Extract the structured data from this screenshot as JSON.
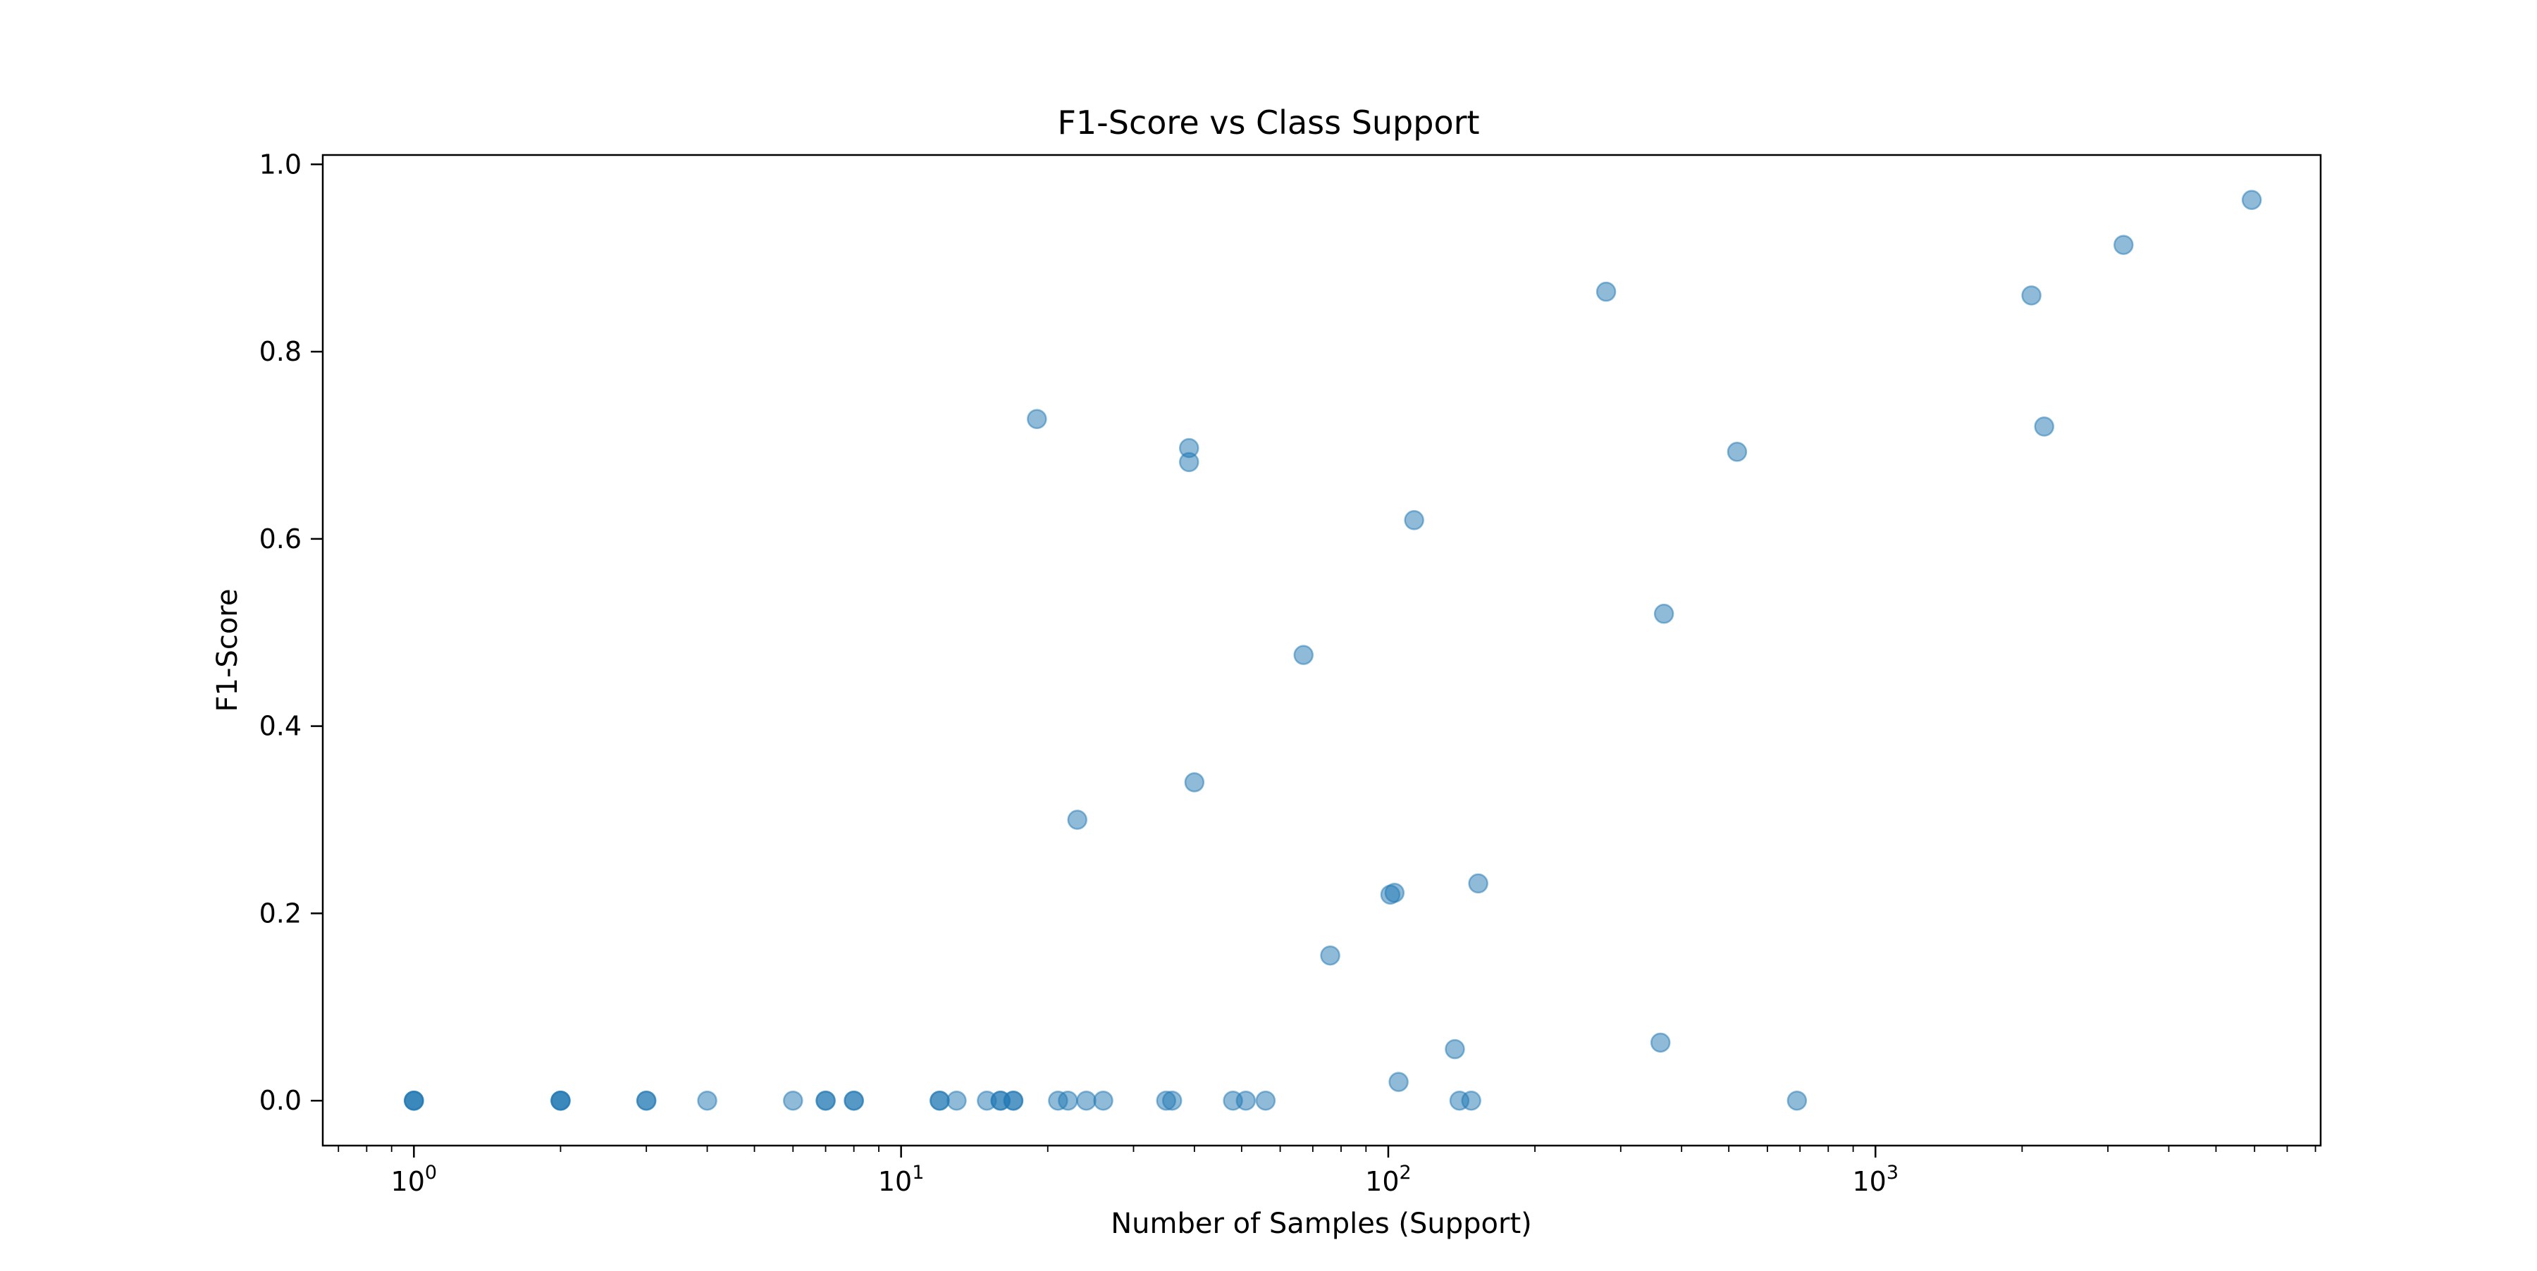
{
  "chart_data": {
    "type": "scatter",
    "title": "F1-Score vs Class Support",
    "xlabel": "Number of Samples (Support)",
    "ylabel": "F1-Score",
    "xscale": "log",
    "xlim": [
      0.65,
      8200
    ],
    "ylim": [
      -0.048,
      1.01
    ],
    "grid": false,
    "legend": "none",
    "marker_color": "#1f77b4",
    "marker_alpha": 0.5,
    "x_ticks": [
      {
        "base": "10",
        "exp": "0",
        "value": 1
      },
      {
        "base": "10",
        "exp": "1",
        "value": 10
      },
      {
        "base": "10",
        "exp": "2",
        "value": 100
      },
      {
        "base": "10",
        "exp": "3",
        "value": 1000
      }
    ],
    "y_ticks": [
      {
        "label": "0.0",
        "value": 0.0
      },
      {
        "label": "0.2",
        "value": 0.2
      },
      {
        "label": "0.4",
        "value": 0.4
      },
      {
        "label": "0.6",
        "value": 0.6
      },
      {
        "label": "0.8",
        "value": 0.8
      },
      {
        "label": "1.0",
        "value": 1.0
      }
    ],
    "points": [
      {
        "x": 1,
        "y": 0.0
      },
      {
        "x": 1,
        "y": 0.0
      },
      {
        "x": 1,
        "y": 0.0
      },
      {
        "x": 2,
        "y": 0.0
      },
      {
        "x": 2,
        "y": 0.0
      },
      {
        "x": 2,
        "y": 0.0
      },
      {
        "x": 3,
        "y": 0.0
      },
      {
        "x": 3,
        "y": 0.0
      },
      {
        "x": 4,
        "y": 0.0
      },
      {
        "x": 6,
        "y": 0.0
      },
      {
        "x": 7,
        "y": 0.0
      },
      {
        "x": 7,
        "y": 0.0
      },
      {
        "x": 8,
        "y": 0.0
      },
      {
        "x": 8,
        "y": 0.0
      },
      {
        "x": 12,
        "y": 0.0
      },
      {
        "x": 12,
        "y": 0.0
      },
      {
        "x": 13,
        "y": 0.0
      },
      {
        "x": 15,
        "y": 0.0
      },
      {
        "x": 16,
        "y": 0.0
      },
      {
        "x": 16,
        "y": 0.0
      },
      {
        "x": 17,
        "y": 0.0
      },
      {
        "x": 17,
        "y": 0.0
      },
      {
        "x": 21,
        "y": 0.0
      },
      {
        "x": 22,
        "y": 0.0
      },
      {
        "x": 24,
        "y": 0.0
      },
      {
        "x": 26,
        "y": 0.0
      },
      {
        "x": 35,
        "y": 0.0
      },
      {
        "x": 36,
        "y": 0.0
      },
      {
        "x": 48,
        "y": 0.0
      },
      {
        "x": 51,
        "y": 0.0
      },
      {
        "x": 56,
        "y": 0.0
      },
      {
        "x": 140,
        "y": 0.0
      },
      {
        "x": 148,
        "y": 0.0
      },
      {
        "x": 690,
        "y": 0.0
      },
      {
        "x": 19,
        "y": 0.728
      },
      {
        "x": 23,
        "y": 0.3
      },
      {
        "x": 39,
        "y": 0.697
      },
      {
        "x": 39,
        "y": 0.682
      },
      {
        "x": 40,
        "y": 0.34
      },
      {
        "x": 67,
        "y": 0.476
      },
      {
        "x": 76,
        "y": 0.155
      },
      {
        "x": 101,
        "y": 0.22
      },
      {
        "x": 103,
        "y": 0.222
      },
      {
        "x": 105,
        "y": 0.02
      },
      {
        "x": 113,
        "y": 0.62
      },
      {
        "x": 137,
        "y": 0.055
      },
      {
        "x": 153,
        "y": 0.232
      },
      {
        "x": 280,
        "y": 0.864
      },
      {
        "x": 362,
        "y": 0.062
      },
      {
        "x": 368,
        "y": 0.52
      },
      {
        "x": 520,
        "y": 0.693
      },
      {
        "x": 2090,
        "y": 0.86
      },
      {
        "x": 2220,
        "y": 0.72
      },
      {
        "x": 3230,
        "y": 0.914
      },
      {
        "x": 5920,
        "y": 0.962
      }
    ]
  }
}
